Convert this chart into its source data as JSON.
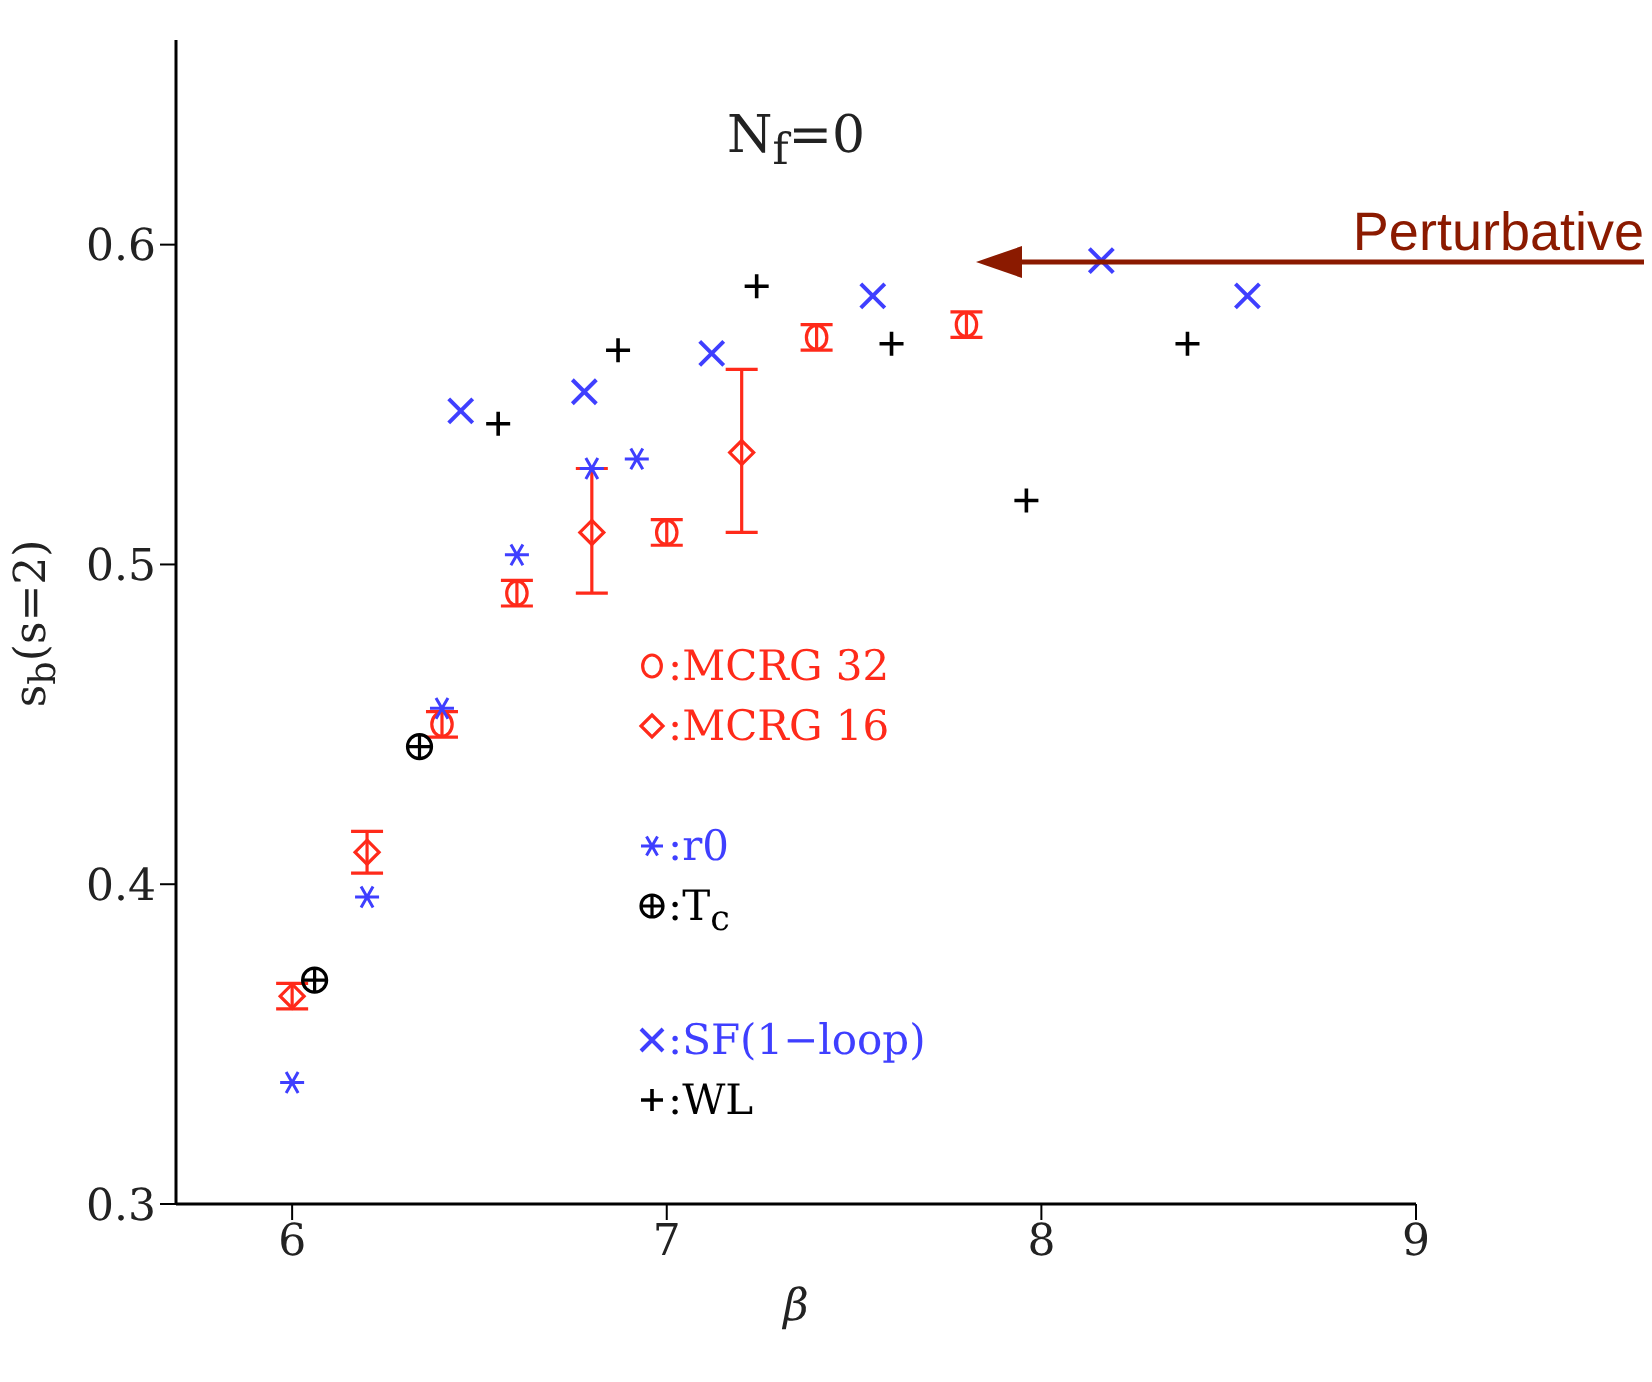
{
  "chart_data": {
    "type": "scatter",
    "title": "N$_{f}$=0",
    "xlabel": "β",
    "ylabel": "s$_{b}$(s=2)",
    "xlim": [
      5.69,
      9
    ],
    "xticks": [
      6,
      7,
      8,
      9
    ],
    "ylim": [
      0.3,
      0.664
    ],
    "yticks": [
      0.3,
      0.4,
      0.5,
      0.6
    ],
    "legend": "center",
    "grid": false,
    "annotations": [
      "Perturbative"
    ],
    "series": [
      {
        "name": ":MCRG 32",
        "color": "#ff2a1a",
        "marker": "circle",
        "x": [
          6.4,
          6.6,
          7.0,
          7.4,
          7.8
        ],
        "values": [
          0.45,
          0.491,
          0.51,
          0.571,
          0.575
        ],
        "errors": [
          0.004,
          0.004,
          0.004,
          0.004,
          0.004
        ]
      },
      {
        "name": ":MCRG 16",
        "color": "#ff2a1a",
        "marker": "diamond",
        "x": [
          6.0,
          6.2,
          6.8,
          7.2
        ],
        "values": [
          0.365,
          0.41,
          0.51,
          0.535
        ],
        "errors": [
          0.004,
          0.0065,
          [
            0.491,
            0.53
          ],
          [
            0.51,
            0.561
          ]
        ]
      },
      {
        "name": ":r0",
        "color": "#3f3fff",
        "x": [
          6.0,
          6.2,
          6.4,
          6.6,
          6.8,
          6.92
        ],
        "values": [
          0.338,
          0.396,
          0.455,
          0.503,
          0.53,
          0.533
        ]
      },
      {
        "name": ":T$_{c}$",
        "color": "#000000",
        "marker": "circle-plus",
        "x": [
          6.06,
          6.34
        ],
        "values": [
          0.37,
          0.443
        ]
      },
      {
        "name": ":SF(1−loop)",
        "color": "#3f3fff",
        "marker": "cross",
        "x": [
          6.45,
          6.78,
          7.12,
          7.55,
          8.16,
          8.55
        ],
        "values": [
          0.548,
          0.554,
          0.566,
          0.584,
          0.595,
          0.584
        ]
      },
      {
        "name": ":WL",
        "color": "#000000",
        "marker": "plus",
        "x": [
          6.55,
          6.87,
          7.24,
          7.6,
          7.96,
          8.39
        ],
        "values": [
          0.544,
          0.567,
          0.587,
          0.569,
          0.52,
          0.569
        ]
      }
    ]
  }
}
